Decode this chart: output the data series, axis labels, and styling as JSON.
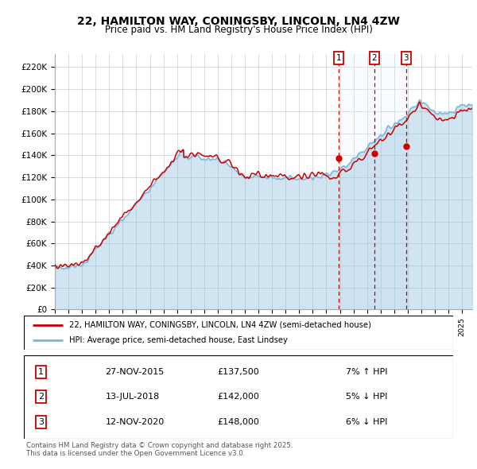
{
  "title1": "22, HAMILTON WAY, CONINGSBY, LINCOLN, LN4 4ZW",
  "title2": "Price paid vs. HM Land Registry's House Price Index (HPI)",
  "yticks": [
    0,
    20000,
    40000,
    60000,
    80000,
    100000,
    120000,
    140000,
    160000,
    180000,
    200000,
    220000
  ],
  "ytick_labels": [
    "£0",
    "£20K",
    "£40K",
    "£60K",
    "£80K",
    "£100K",
    "£120K",
    "£140K",
    "£160K",
    "£180K",
    "£200K",
    "£220K"
  ],
  "ylim": [
    0,
    232000
  ],
  "xlim_start": 1995.0,
  "xlim_end": 2025.75,
  "sale_dates": [
    2015.92,
    2018.54,
    2020.88
  ],
  "sale_prices": [
    137500,
    142000,
    148000
  ],
  "sale_labels": [
    "1",
    "2",
    "3"
  ],
  "legend_line1": "22, HAMILTON WAY, CONINGSBY, LINCOLN, LN4 4ZW (semi-detached house)",
  "legend_line2": "HPI: Average price, semi-detached house, East Lindsey",
  "table_entries": [
    {
      "num": "1",
      "date": "27-NOV-2015",
      "price": "£137,500",
      "pct": "7% ↑ HPI"
    },
    {
      "num": "2",
      "date": "13-JUL-2018",
      "price": "£142,000",
      "pct": "5% ↓ HPI"
    },
    {
      "num": "3",
      "date": "12-NOV-2020",
      "price": "£148,000",
      "pct": "6% ↓ HPI"
    }
  ],
  "footer": "Contains HM Land Registry data © Crown copyright and database right 2025.\nThis data is licensed under the Open Government Licence v3.0.",
  "hpi_color": "#7ab6d8",
  "hpi_fill_color": "#d6eaf8",
  "price_color": "#cc0000",
  "background_color": "#ffffff",
  "grid_color": "#cccccc",
  "sale_vline_color": "#cc0000",
  "marker_box_color": "#cc0000",
  "shade_color": "#ddeeff"
}
